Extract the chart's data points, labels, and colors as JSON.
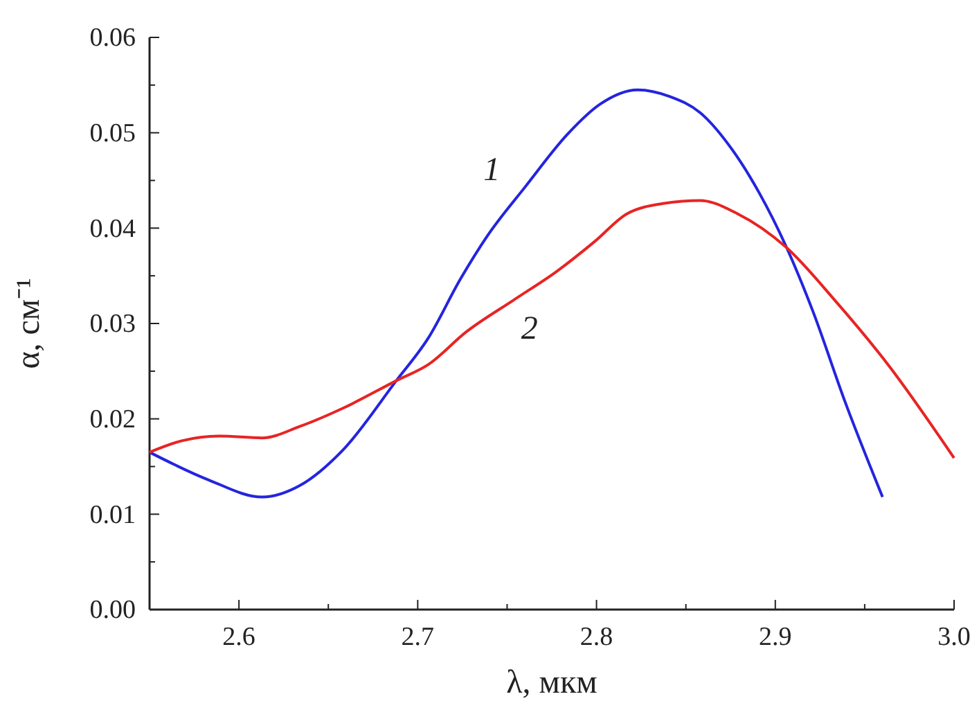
{
  "chart_data": {
    "type": "line",
    "xlabel": "λ, мкм",
    "ylabel": "α, см⁻¹",
    "xlim": [
      2.55,
      3.0
    ],
    "xticks": [
      {
        "value": 2.55,
        "label": null
      },
      2.6,
      {
        "value": 2.65,
        "label": null
      },
      2.7,
      {
        "value": 2.75,
        "label": null
      },
      2.8,
      {
        "value": 2.85,
        "label": null
      },
      2.9,
      {
        "value": 2.95,
        "label": null
      },
      {
        "value": 3.0,
        "label": "3.0"
      }
    ],
    "ylim": [
      0,
      0.06
    ],
    "yticks": [
      {
        "value": 0,
        "label": "0.00"
      },
      {
        "value": 0.005,
        "label": null
      },
      0.01,
      {
        "value": 0.015,
        "label": null
      },
      {
        "value": 0.02,
        "label": "0.02"
      },
      {
        "value": 0.025,
        "label": null
      },
      {
        "value": 0.03,
        "label": "0.03"
      },
      {
        "value": 0.035,
        "label": null
      },
      {
        "value": 0.04,
        "label": "0.04"
      },
      {
        "value": 0.045,
        "label": null
      },
      {
        "value": 0.05,
        "label": "0.05"
      },
      {
        "value": 0.055,
        "label": null
      },
      {
        "value": 0.06,
        "label": "0.06"
      }
    ],
    "grid": false,
    "legend": false,
    "marker": "none",
    "line_style": "solid",
    "series": [
      {
        "name": "1",
        "color": "#2424e0",
        "x": [
          2.55,
          2.583,
          2.613,
          2.634,
          2.658,
          2.688,
          2.706,
          2.724,
          2.739,
          2.76,
          2.784,
          2.802,
          2.823,
          2.841,
          2.858,
          2.876,
          2.891,
          2.906,
          2.921,
          2.939,
          2.96
        ],
        "values": [
          0.0165,
          0.0136,
          0.0118,
          0.013,
          0.0167,
          0.024,
          0.0285,
          0.0347,
          0.0392,
          0.0443,
          0.0499,
          0.053,
          0.0545,
          0.0538,
          0.0521,
          0.0482,
          0.0437,
          0.0381,
          0.0313,
          0.0218,
          0.0118
        ]
      },
      {
        "name": "2",
        "color": "#e82424",
        "x": [
          2.55,
          2.568,
          2.589,
          2.613,
          2.634,
          2.658,
          2.688,
          2.706,
          2.727,
          2.754,
          2.778,
          2.799,
          2.817,
          2.838,
          2.858,
          2.879,
          2.906,
          2.933,
          2.963,
          3.0
        ],
        "values": [
          0.0165,
          0.0177,
          0.0182,
          0.018,
          0.0192,
          0.0211,
          0.024,
          0.0257,
          0.0291,
          0.0325,
          0.0355,
          0.0386,
          0.0415,
          0.0426,
          0.0429,
          0.0415,
          0.038,
          0.0325,
          0.0257,
          0.0159
        ]
      }
    ]
  }
}
